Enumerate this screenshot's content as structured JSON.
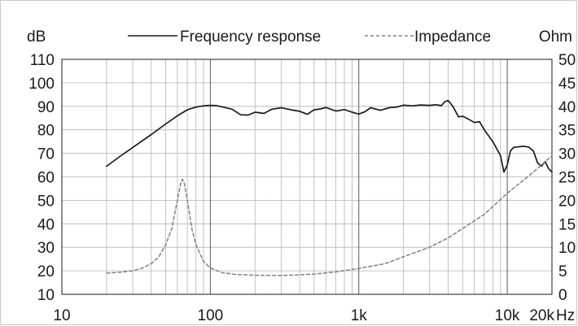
{
  "chart_data": {
    "type": "line",
    "x_scale": "log",
    "xlim": [
      10,
      20000
    ],
    "x_unit": "Hz",
    "x_tick_labels": [
      {
        "value": 10,
        "label": "10"
      },
      {
        "value": 100,
        "label": "100"
      },
      {
        "value": 1000,
        "label": "1k"
      },
      {
        "value": 10000,
        "label": "10k"
      },
      {
        "value": 20000,
        "label": "20k"
      }
    ],
    "y_left": {
      "unit": "dB",
      "lim": [
        10,
        110
      ],
      "ticks": [
        10,
        20,
        30,
        40,
        50,
        60,
        70,
        80,
        90,
        100,
        110
      ]
    },
    "y_right": {
      "unit": "Ohm",
      "lim": [
        0,
        50
      ],
      "ticks": [
        0,
        5,
        10,
        15,
        20,
        25,
        30,
        35,
        40,
        45,
        50
      ]
    },
    "grid": true,
    "legend_position": "top",
    "colors": {
      "frequency_response": "#1a1a1a",
      "impedance": "#808080",
      "grid": "#b4b4b4",
      "major_grid": "#5a5a5a"
    },
    "series": [
      {
        "name": "Frequency response",
        "axis": "left",
        "style": "solid",
        "x": [
          20,
          25,
          30,
          40,
          50,
          60,
          70,
          80,
          90,
          100,
          110,
          120,
          140,
          160,
          180,
          200,
          230,
          260,
          300,
          350,
          400,
          450,
          500,
          550,
          600,
          700,
          800,
          900,
          1000,
          1100,
          1200,
          1400,
          1600,
          1800,
          2000,
          2300,
          2600,
          3000,
          3300,
          3600,
          3800,
          4000,
          4300,
          4700,
          5000,
          5500,
          6000,
          6500,
          7000,
          8000,
          9000,
          9500,
          10000,
          10500,
          11000,
          12000,
          13000,
          14000,
          15000,
          16000,
          17000,
          18000,
          19000,
          20000
        ],
        "values": [
          64.5,
          69,
          72.5,
          78,
          82.5,
          86,
          88.5,
          89.7,
          90.2,
          90.4,
          90.3,
          89.8,
          88.8,
          86.4,
          86.3,
          87.5,
          87,
          88.8,
          89.4,
          88.5,
          87.9,
          86.6,
          88.5,
          88.9,
          89.5,
          88,
          88.6,
          87.5,
          86.7,
          87.7,
          89.4,
          88.3,
          89.4,
          89.7,
          90.5,
          90.2,
          90.6,
          90.4,
          90.7,
          90.3,
          92,
          92.5,
          90,
          85.5,
          85.8,
          84.5,
          83.1,
          83.5,
          80,
          75,
          69,
          62,
          65,
          71,
          72.5,
          72.8,
          73,
          72.6,
          71,
          66,
          64.5,
          66.5,
          63.5,
          62
        ]
      },
      {
        "name": "Impedance",
        "axis": "right",
        "style": "dashed",
        "x": [
          20,
          25,
          30,
          35,
          40,
          45,
          50,
          55,
          60,
          63,
          65,
          67,
          70,
          75,
          80,
          90,
          100,
          120,
          150,
          200,
          300,
          400,
          500,
          700,
          1000,
          1500,
          2000,
          3000,
          4000,
          5000,
          7000,
          10000,
          15000,
          20000
        ],
        "values": [
          4.5,
          4.7,
          5,
          5.6,
          6.5,
          8,
          10.5,
          14,
          20,
          23.5,
          24.5,
          23.5,
          20,
          14,
          10.5,
          7,
          5.6,
          4.6,
          4.2,
          4.05,
          4,
          4.15,
          4.3,
          4.75,
          5.5,
          6.5,
          8,
          10,
          12,
          14,
          17,
          21.5,
          26,
          29.5
        ]
      }
    ]
  }
}
